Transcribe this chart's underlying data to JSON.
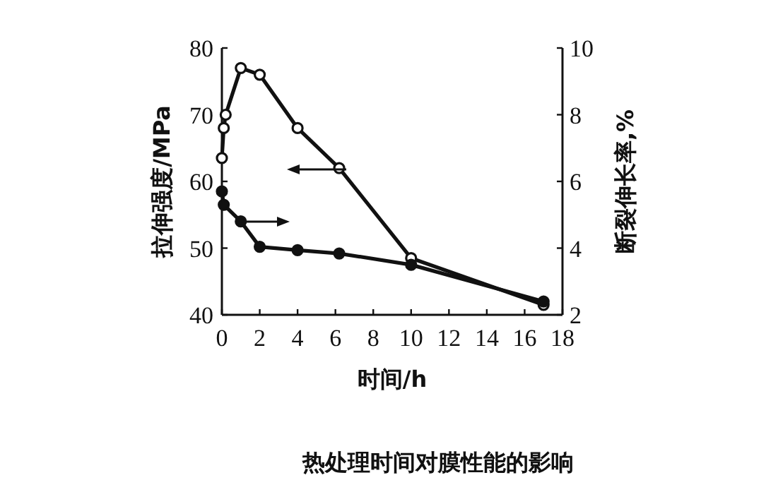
{
  "chart_data": {
    "type": "line",
    "title": "热处理时间对膜性能的影响",
    "xlabel": "时间/h",
    "ylabel": "拉伸强度/MPa",
    "y2label": "断裂伸长率,%",
    "xlim": [
      0,
      18
    ],
    "xticks": [
      0,
      2,
      4,
      6,
      8,
      10,
      12,
      14,
      16,
      18
    ],
    "ylim": [
      40,
      80
    ],
    "yticks": [
      40,
      50,
      60,
      70,
      80
    ],
    "y2lim": [
      2,
      10
    ],
    "y2ticks": [
      2,
      4,
      6,
      8,
      10
    ],
    "marker": "circle",
    "line_style": "solid",
    "grid": false,
    "series": [
      {
        "color": "#111111",
        "x": [
          0,
          0.1,
          0.2,
          1,
          2,
          4,
          6.2,
          10,
          17
        ],
        "values": [
          63.5,
          68,
          70,
          77,
          76,
          68,
          62,
          48.5,
          41.5
        ]
      },
      {
        "color": "#111111",
        "axis": "y2",
        "x": [
          0,
          0.1,
          1,
          2,
          4,
          6.2,
          10,
          17
        ],
        "values": [
          5.7,
          5.3,
          4.8,
          4.04,
          3.94,
          3.84,
          3.5,
          2.4
        ]
      }
    ]
  }
}
